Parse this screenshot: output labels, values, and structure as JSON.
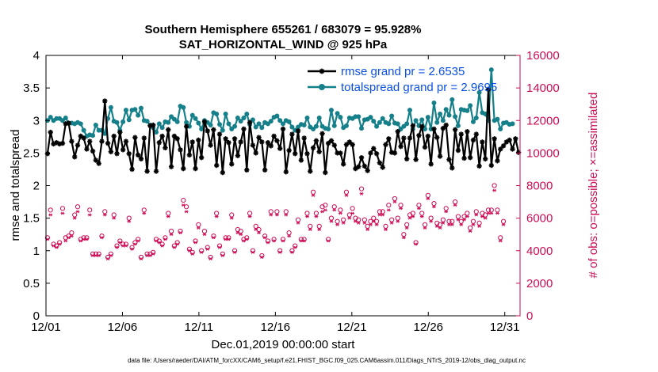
{
  "chart_data": {
    "type": "line",
    "title": "Southern Hemisphere 655261 / 683079 = 95.928%",
    "subtitle": "SAT_HORIZONTAL_WIND @ 925 hPa",
    "xlabel": "Dec.01,2019 00:00:00 start",
    "ylabel": "rmse and totalspread",
    "ylabel_right": "# of obs: o=possible; ×=assimilated",
    "footnote": "data file: /Users/raeder/DAI/ATM_forcXX/CAM6_setup/f.e21.FHIST_BGC.f09_025.CAM6assim.011/Diags_NTrS_2019-12/obs_diag_output.nc",
    "xlim": [
      0,
      31
    ],
    "ylim": [
      0,
      4
    ],
    "ylim_right": [
      0,
      16000
    ],
    "x_ticks": [
      0,
      5,
      10,
      15,
      20,
      25,
      30
    ],
    "x_tick_labels": [
      "12/01",
      "12/06",
      "12/11",
      "12/16",
      "12/21",
      "12/26",
      "12/31"
    ],
    "y_ticks": [
      0,
      0.5,
      1,
      1.5,
      2,
      2.5,
      3,
      3.5,
      4
    ],
    "y_tick_labels": [
      "0",
      "0.5",
      "1",
      "1.5",
      "2",
      "2.5",
      "3",
      "3.5",
      "4"
    ],
    "y_right_ticks": [
      0,
      2000,
      4000,
      6000,
      8000,
      10000,
      12000,
      14000,
      16000
    ],
    "y_right_tick_labels": [
      "0",
      "2000",
      "4000",
      "6000",
      "8000",
      "10000",
      "12000",
      "14000",
      "16000"
    ],
    "colors": {
      "rmse": "#000000",
      "totalspread": "#16808a",
      "obs": "#cc0b55",
      "legend_text": "#0a4fe6",
      "axis": "#000000"
    },
    "series": [
      {
        "name": "rmse",
        "legend": "rmse grand pr = 2.6535",
        "axis": "left",
        "values": [
          2.49,
          2.82,
          2.64,
          2.66,
          2.64,
          2.65,
          2.95,
          2.96,
          2.68,
          2.44,
          2.62,
          2.76,
          2.73,
          2.56,
          2.68,
          2.53,
          2.39,
          2.34,
          2.68,
          3.3,
          2.65,
          2.52,
          2.76,
          2.49,
          2.82,
          2.55,
          2.68,
          2.49,
          2.25,
          2.74,
          2.47,
          2.41,
          2.73,
          2.22,
          2.92,
          2.93,
          2.22,
          2.66,
          2.76,
          2.58,
          2.86,
          2.29,
          2.76,
          2.72,
          2.55,
          2.26,
          2.91,
          2.47,
          2.67,
          2.26,
          2.7,
          2.43,
          2.98,
          2.84,
          2.62,
          2.86,
          2.31,
          2.79,
          2.2,
          2.72,
          2.66,
          2.33,
          2.72,
          2.46,
          2.67,
          2.87,
          2.24,
          2.97,
          2.62,
          2.5,
          2.74,
          2.67,
          2.24,
          2.66,
          2.61,
          2.76,
          2.69,
          2.57,
          2.87,
          2.21,
          2.54,
          2.79,
          2.49,
          2.84,
          2.39,
          2.73,
          2.49,
          2.22,
          2.58,
          2.69,
          2.52,
          2.8,
          2.2,
          2.65,
          2.69,
          2.62,
          2.5,
          2.5,
          2.33,
          2.63,
          2.67,
          2.63,
          2.26,
          2.29,
          2.43,
          2.3,
          2.23,
          2.5,
          2.57,
          2.49,
          2.35,
          2.28,
          2.63,
          2.72,
          2.51,
          2.5,
          2.83,
          2.6,
          2.73,
          2.41,
          2.73,
          2.92,
          2.4,
          2.77,
          2.91,
          2.59,
          2.76,
          2.33,
          2.87,
          2.74,
          2.45,
          2.88,
          2.93,
          2.4,
          2.27,
          2.86,
          2.54,
          2.79,
          2.42,
          2.83,
          2.43,
          2.7,
          2.79,
          2.3,
          2.67,
          2.41,
          3.48,
          2.31,
          2.72,
          2.38,
          2.56,
          2.61,
          2.67,
          2.7,
          2.56,
          2.72,
          2.51
        ]
      },
      {
        "name": "totalspread",
        "legend": "totalspread grand pr = 2.9695",
        "axis": "left",
        "values": [
          3.0,
          3.05,
          3.0,
          3.03,
          3.03,
          3.0,
          3.04,
          2.96,
          2.96,
          2.95,
          2.97,
          2.95,
          2.85,
          2.76,
          2.78,
          2.77,
          2.93,
          2.85,
          2.85,
          2.8,
          3.03,
          3.2,
          2.99,
          2.97,
          2.85,
          2.98,
          3.16,
          3.01,
          3.16,
          3.17,
          3.08,
          3.19,
          3.0,
          2.99,
          2.93,
          2.89,
          2.82,
          2.95,
          2.89,
          2.98,
          2.97,
          3.06,
          3.02,
          2.98,
          3.22,
          3.2,
          2.97,
          2.91,
          3.08,
          3.03,
          2.96,
          2.87,
          3.0,
          2.97,
          2.93,
          3.12,
          3.1,
          2.94,
          2.85,
          3.1,
          2.95,
          2.87,
          2.91,
          3.04,
          2.99,
          3.04,
          3.1,
          2.94,
          3.01,
          2.9,
          2.95,
          2.89,
          2.97,
          2.95,
          2.99,
          3.05,
          3.07,
          3.0,
          2.95,
          3.0,
          2.98,
          2.9,
          2.85,
          2.9,
          2.94,
          2.93,
          3.04,
          2.9,
          2.87,
          2.91,
          3.04,
          2.91,
          2.88,
          2.87,
          3.16,
          2.92,
          3.11,
          3.05,
          2.89,
          2.92,
          3.04,
          3.03,
          3.06,
          3.06,
          2.88,
          3.01,
          3.02,
          3.05,
          2.99,
          2.91,
          2.97,
          3.03,
          2.97,
          2.95,
          3.07,
          2.96,
          2.95,
          2.87,
          2.91,
          2.95,
          3.16,
          2.87,
          3.0,
          2.92,
          3.01,
          2.87,
          3.05,
          2.87,
          3.27,
          2.97,
          3.1,
          3.0,
          3.17,
          3.08,
          3.32,
          3.06,
          2.92,
          3.17,
          3.16,
          3.15,
          3.23,
          2.98,
          3.04,
          3.43,
          3.12,
          3.1,
          3.0,
          3.78,
          3.0,
          3.02,
          2.87,
          2.96,
          2.97,
          2.94,
          2.95
        ]
      },
      {
        "name": "possible",
        "marker": "o",
        "axis": "right",
        "values": [
          4800,
          6500,
          4400,
          4300,
          4500,
          6600,
          4800,
          4900,
          5100,
          6200,
          6700,
          4700,
          4800,
          4800,
          6500,
          3800,
          3800,
          3800,
          4900,
          6400,
          3600,
          3800,
          6200,
          4300,
          4600,
          4400,
          4400,
          6000,
          4200,
          4500,
          4700,
          3600,
          6500,
          3800,
          3800,
          3900,
          4700,
          4600,
          4400,
          4800,
          6300,
          5200,
          4300,
          4500,
          5200,
          7100,
          6700,
          4100,
          3900,
          4600,
          5600,
          4000,
          5200,
          4200,
          3600,
          4900,
          6300,
          4300,
          3800,
          4800,
          4800,
          6200,
          4000,
          5300,
          5200,
          4700,
          4800,
          6300,
          4000,
          5500,
          5300,
          3700,
          4900,
          4600,
          6400,
          4700,
          6400,
          4000,
          4700,
          6400,
          5100,
          4000,
          4300,
          5900,
          4700,
          4700,
          6300,
          5500,
          7600,
          6300,
          5500,
          6700,
          6800,
          4700,
          6000,
          6700,
          5800,
          6500,
          5900,
          7600,
          6200,
          6600,
          6000,
          5900,
          7800,
          5900,
          5500,
          5800,
          6000,
          5800,
          6400,
          6400,
          5500,
          6800,
          5900,
          7200,
          6000,
          6800,
          5000,
          5600,
          6200,
          6300,
          4500,
          6800,
          6300,
          5600,
          7400,
          6000,
          6900,
          5700,
          5600,
          5900,
          6600,
          5800,
          5800,
          7000,
          6100,
          5800,
          6100,
          6300,
          5400,
          5800,
          6400,
          5700,
          6300,
          6200,
          6500,
          6500,
          8000,
          6500,
          4800,
          5800
        ]
      },
      {
        "name": "assimilated",
        "marker": "x",
        "axis": "right",
        "values": [
          4700,
          6200,
          4300,
          4200,
          4400,
          6300,
          4600,
          4800,
          4900,
          6000,
          6400,
          4600,
          4700,
          4700,
          6200,
          3700,
          3700,
          3700,
          4800,
          6200,
          3500,
          3700,
          6000,
          4200,
          4500,
          4300,
          4300,
          5800,
          4100,
          4400,
          4600,
          3500,
          6300,
          3700,
          3700,
          3800,
          4600,
          4500,
          4300,
          4700,
          6100,
          5000,
          4200,
          4400,
          5100,
          6800,
          6400,
          4000,
          3800,
          4500,
          5400,
          3900,
          5000,
          4100,
          3500,
          4800,
          6100,
          4200,
          3700,
          4700,
          4700,
          6000,
          3900,
          5100,
          5000,
          4600,
          4700,
          6100,
          3900,
          5300,
          5100,
          3600,
          4800,
          4500,
          6200,
          4600,
          6200,
          3900,
          4600,
          6200,
          4900,
          3900,
          4200,
          5700,
          4600,
          4600,
          6100,
          5300,
          7400,
          6100,
          5300,
          6400,
          6500,
          4600,
          5800,
          6500,
          5600,
          6300,
          5700,
          7400,
          6000,
          6300,
          5800,
          5700,
          7500,
          5700,
          5300,
          5600,
          5800,
          5600,
          6200,
          6200,
          5300,
          6500,
          5700,
          7000,
          5800,
          6600,
          4800,
          5400,
          6000,
          6100,
          4400,
          6600,
          6100,
          5400,
          7200,
          5800,
          6700,
          5500,
          5400,
          5700,
          6400,
          5600,
          5600,
          6800,
          5900,
          5600,
          5900,
          6100,
          5200,
          5600,
          6200,
          5500,
          6100,
          6000,
          6300,
          6300,
          7700,
          6300,
          4600,
          5600
        ]
      }
    ]
  }
}
